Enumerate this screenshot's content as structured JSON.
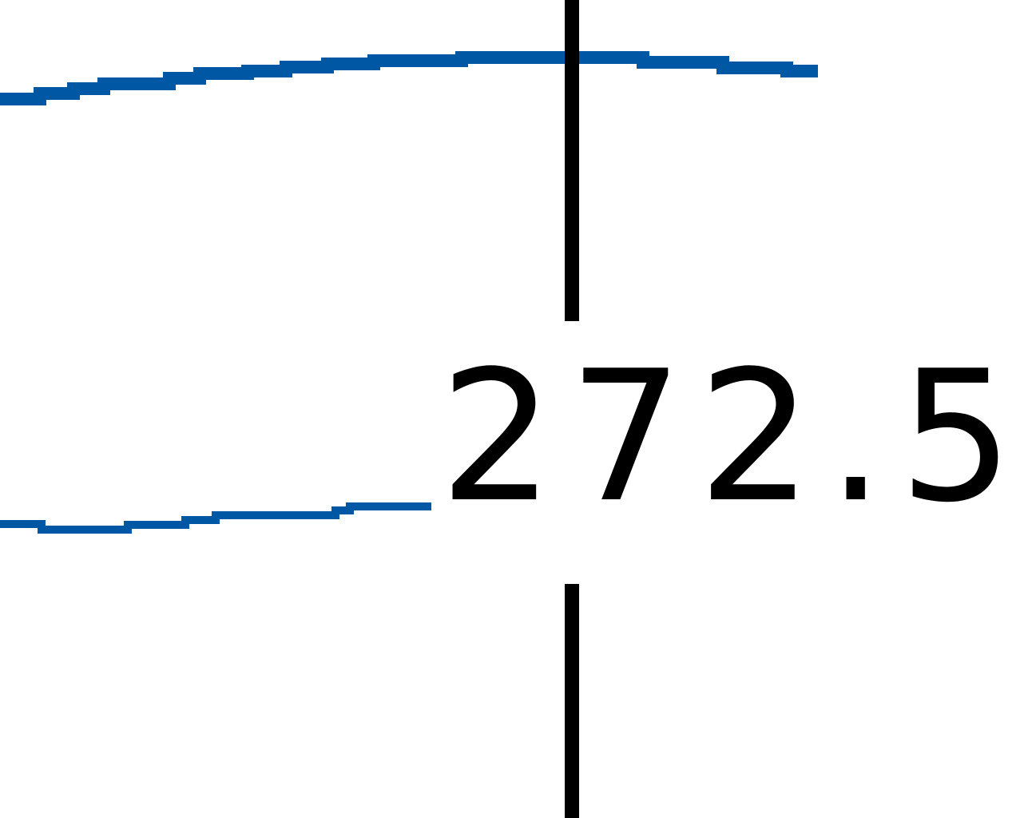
{
  "map": {
    "contour_label": "272.5",
    "colors": {
      "contour_line": "#0057a3",
      "gridline": "#000000",
      "background": "#ffffff",
      "label_text": "#000000"
    }
  }
}
